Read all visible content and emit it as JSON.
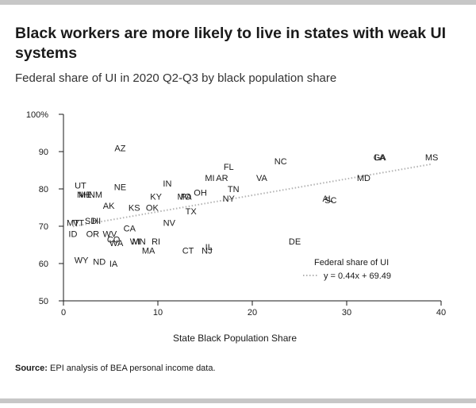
{
  "title": "Black workers are more likely to live in states with weak UI systems",
  "subtitle": "Federal share of UI in 2020 Q2-Q3 by black population share",
  "source": {
    "label": "Source:",
    "text": " EPI analysis of BEA personal income data."
  },
  "chart_data": {
    "type": "scatter",
    "xlabel": "State Black Population Share",
    "ylabel": "",
    "xlim": [
      0,
      40
    ],
    "ylim": [
      50,
      100
    ],
    "xticks": [
      0,
      10,
      20,
      30,
      40
    ],
    "yticks": [
      50,
      60,
      70,
      80,
      90,
      100
    ],
    "ytick_labels": [
      "50",
      "60",
      "70",
      "80",
      "90",
      "100%"
    ],
    "grid": false,
    "legend": {
      "placement": "bottom-right",
      "title": "Federal share of UI",
      "entries": [
        "y = 0.44x + 69.49"
      ]
    },
    "trendline": {
      "slope": 0.44,
      "intercept": 69.49,
      "x_range": [
        1,
        39
      ],
      "color": "#b3b3b3"
    },
    "points": [
      {
        "label": "AZ",
        "x": 6.0,
        "y": 91.0
      },
      {
        "label": "UT",
        "x": 1.8,
        "y": 81.0
      },
      {
        "label": "NE",
        "x": 6.0,
        "y": 80.5
      },
      {
        "label": "ME",
        "x": 2.3,
        "y": 78.5
      },
      {
        "label": "NH",
        "x": 2.1,
        "y": 78.5
      },
      {
        "label": "NM",
        "x": 3.4,
        "y": 78.5
      },
      {
        "label": "AK",
        "x": 4.8,
        "y": 75.5
      },
      {
        "label": "KS",
        "x": 7.5,
        "y": 75.0
      },
      {
        "label": "OK",
        "x": 9.4,
        "y": 75.0
      },
      {
        "label": "KY",
        "x": 9.8,
        "y": 78.0
      },
      {
        "label": "IN",
        "x": 11.0,
        "y": 81.5
      },
      {
        "label": "MI",
        "x": 15.5,
        "y": 83.0
      },
      {
        "label": "AR",
        "x": 16.8,
        "y": 83.0
      },
      {
        "label": "FL",
        "x": 17.5,
        "y": 86.0
      },
      {
        "label": "NC",
        "x": 23.0,
        "y": 87.5
      },
      {
        "label": "VA",
        "x": 21.0,
        "y": 83.0
      },
      {
        "label": "TN",
        "x": 18.0,
        "y": 80.0
      },
      {
        "label": "NY",
        "x": 17.5,
        "y": 77.5
      },
      {
        "label": "OH",
        "x": 14.5,
        "y": 79.0
      },
      {
        "label": "MO",
        "x": 12.8,
        "y": 78.0
      },
      {
        "label": "PA",
        "x": 13.0,
        "y": 78.0
      },
      {
        "label": "TX",
        "x": 13.5,
        "y": 74.0
      },
      {
        "label": "NV",
        "x": 11.2,
        "y": 71.0
      },
      {
        "label": "GA",
        "x": 33.5,
        "y": 88.5
      },
      {
        "label": "LA",
        "x": 33.5,
        "y": 88.5
      },
      {
        "label": "MS",
        "x": 39.0,
        "y": 88.5
      },
      {
        "label": "MD",
        "x": 31.8,
        "y": 83.0
      },
      {
        "label": "AL",
        "x": 28.0,
        "y": 77.5
      },
      {
        "label": "SC",
        "x": 28.3,
        "y": 77.0
      },
      {
        "label": "DE",
        "x": 24.5,
        "y": 66.0
      },
      {
        "label": "CT",
        "x": 13.2,
        "y": 63.5
      },
      {
        "label": "IL",
        "x": 15.4,
        "y": 64.5
      },
      {
        "label": "NJ",
        "x": 15.2,
        "y": 63.5
      },
      {
        "label": "MA",
        "x": 9.0,
        "y": 63.5
      },
      {
        "label": "RI",
        "x": 9.8,
        "y": 66.0
      },
      {
        "label": "MN",
        "x": 8.0,
        "y": 66.0
      },
      {
        "label": "WI",
        "x": 7.6,
        "y": 66.0
      },
      {
        "label": "WA",
        "x": 5.6,
        "y": 65.5
      },
      {
        "label": "CO",
        "x": 5.3,
        "y": 66.5
      },
      {
        "label": "CA",
        "x": 7.0,
        "y": 69.5
      },
      {
        "label": "OR",
        "x": 3.1,
        "y": 68.0
      },
      {
        "label": "WV",
        "x": 4.9,
        "y": 68.0
      },
      {
        "label": "HI",
        "x": 3.5,
        "y": 71.5
      },
      {
        "label": "SD",
        "x": 2.9,
        "y": 71.5
      },
      {
        "label": "VT",
        "x": 1.6,
        "y": 71.0
      },
      {
        "label": "MT",
        "x": 1.0,
        "y": 71.0
      },
      {
        "label": "ID",
        "x": 1.0,
        "y": 68.0
      },
      {
        "label": "WY",
        "x": 1.9,
        "y": 61.0
      },
      {
        "label": "ND",
        "x": 3.8,
        "y": 60.5
      },
      {
        "label": "IA",
        "x": 5.3,
        "y": 60.0
      }
    ]
  }
}
